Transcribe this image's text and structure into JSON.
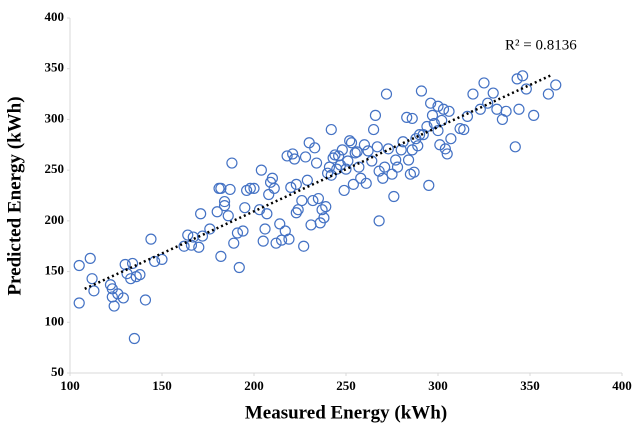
{
  "chart_data": {
    "type": "scatter",
    "x_label": "Measured Energy (kWh)",
    "y_label": "Predicted Energy (kWh)",
    "annotation": "R² = 0.8136",
    "xlim": [
      100,
      400
    ],
    "xticks": [
      100,
      150,
      200,
      250,
      300,
      350,
      400
    ],
    "ylim": [
      50,
      400
    ],
    "yticks": [
      50,
      100,
      150,
      200,
      250,
      300,
      350,
      400
    ],
    "grid": false,
    "trendline": {
      "color": "#000000",
      "x": [
        108,
        362
      ],
      "y": [
        133,
        344
      ]
    },
    "series": [
      {
        "color": "#4472c4",
        "x": [
          105,
          105,
          111,
          112,
          113,
          122,
          123,
          123,
          124,
          126,
          129,
          130,
          131,
          133,
          134,
          135,
          136,
          138,
          141,
          144,
          146,
          150,
          162,
          164,
          166,
          167,
          170,
          172,
          171,
          176,
          180,
          181,
          182,
          182,
          184,
          184,
          186,
          187,
          188,
          189,
          191,
          192,
          194,
          195,
          196,
          198,
          200,
          203,
          204,
          205,
          206,
          207,
          208,
          209,
          210,
          211,
          212,
          214,
          215,
          217,
          218,
          219,
          220,
          221,
          222,
          223,
          223,
          224,
          226,
          227,
          228,
          229,
          230,
          231,
          232,
          233,
          234,
          235,
          236,
          237,
          238,
          239,
          240,
          241,
          242,
          242,
          243,
          244,
          245,
          246,
          247,
          248,
          249,
          250,
          251,
          252,
          253,
          254,
          255,
          256,
          257,
          258,
          260,
          261,
          262,
          264,
          265,
          266,
          267,
          268,
          268,
          270,
          271,
          272,
          273,
          275,
          276,
          277,
          278,
          280,
          281,
          283,
          284,
          285,
          286,
          286,
          287,
          288,
          289,
          290,
          291,
          292,
          294,
          295,
          296,
          297,
          298,
          300,
          300,
          301,
          302,
          303,
          304,
          305,
          306,
          307,
          312,
          314,
          316,
          319,
          323,
          325,
          327,
          330,
          332,
          335,
          337,
          342,
          343,
          344,
          346,
          348,
          352,
          360,
          364
        ],
        "y": [
          119,
          156,
          163,
          143,
          131,
          137,
          133,
          125,
          116,
          128,
          124,
          157,
          148,
          143,
          158,
          84,
          145,
          147,
          122,
          182,
          160,
          162,
          175,
          186,
          176,
          184,
          174,
          185,
          207,
          192,
          209,
          232,
          232,
          165,
          215,
          219,
          205,
          231,
          257,
          178,
          188,
          154,
          190,
          213,
          230,
          232,
          232,
          211,
          250,
          180,
          192,
          207,
          226,
          238,
          242,
          232,
          178,
          197,
          181,
          190,
          264,
          182,
          233,
          266,
          261,
          236,
          208,
          211,
          220,
          175,
          263,
          240,
          277,
          196,
          220,
          272,
          257,
          222,
          198,
          211,
          203,
          214,
          247,
          253,
          290,
          245,
          262,
          265,
          251,
          264,
          255,
          270,
          230,
          251,
          259,
          279,
          277,
          236,
          267,
          268,
          253,
          242,
          275,
          237,
          269,
          259,
          290,
          304,
          273,
          249,
          200,
          242,
          253,
          325,
          271,
          246,
          224,
          260,
          253,
          270,
          278,
          302,
          260,
          246,
          270,
          301,
          248,
          281,
          274,
          285,
          328,
          285,
          293,
          235,
          316,
          304,
          296,
          289,
          313,
          275,
          299,
          310,
          271,
          266,
          308,
          281,
          291,
          290,
          303,
          325,
          310,
          336,
          316,
          326,
          310,
          300,
          308,
          273,
          340,
          310,
          343,
          330,
          304,
          325,
          334
        ]
      }
    ]
  }
}
